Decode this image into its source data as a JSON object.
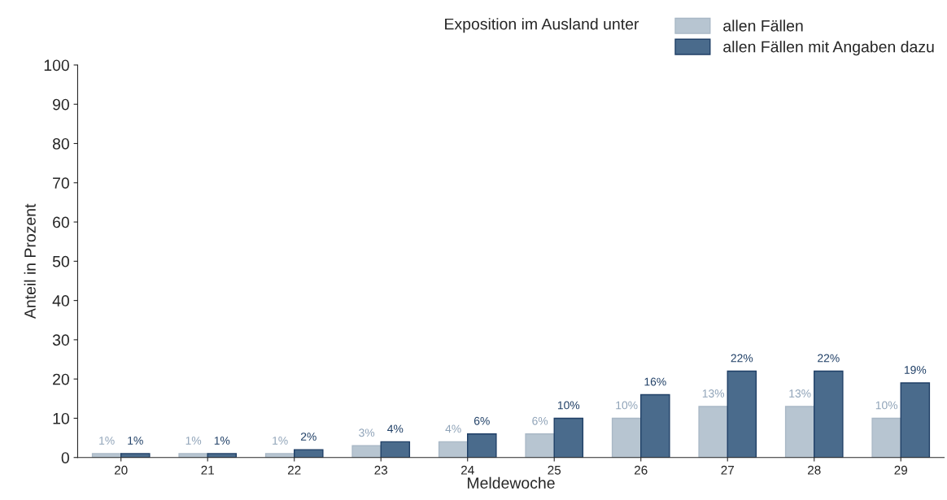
{
  "chart_data": {
    "type": "bar",
    "xlabel": "Meldewoche",
    "ylabel": "Anteil in Prozent",
    "legend_title": "Exposition im Ausland unter",
    "categories": [
      "20",
      "21",
      "22",
      "23",
      "24",
      "25",
      "26",
      "27",
      "28",
      "29"
    ],
    "series": [
      {
        "name": "allen Fällen",
        "color": "#b7c5d1",
        "values": [
          1,
          1,
          1,
          3,
          4,
          6,
          10,
          13,
          13,
          10
        ],
        "value_labels": [
          "1%",
          "1%",
          "1%",
          "3%",
          "4%",
          "6%",
          "10%",
          "13%",
          "13%",
          "10%"
        ]
      },
      {
        "name": "allen Fällen mit Angaben dazu",
        "color": "#4a6b8c",
        "values": [
          1,
          1,
          2,
          4,
          6,
          10,
          16,
          22,
          22,
          19
        ],
        "value_labels": [
          "1%",
          "1%",
          "2%",
          "4%",
          "6%",
          "10%",
          "16%",
          "22%",
          "22%",
          "19%"
        ]
      }
    ],
    "ylim": [
      0,
      100
    ],
    "yticks": [
      0,
      10,
      20,
      30,
      40,
      50,
      60,
      70,
      80,
      90,
      100
    ],
    "grid": false,
    "legend": "top right"
  }
}
